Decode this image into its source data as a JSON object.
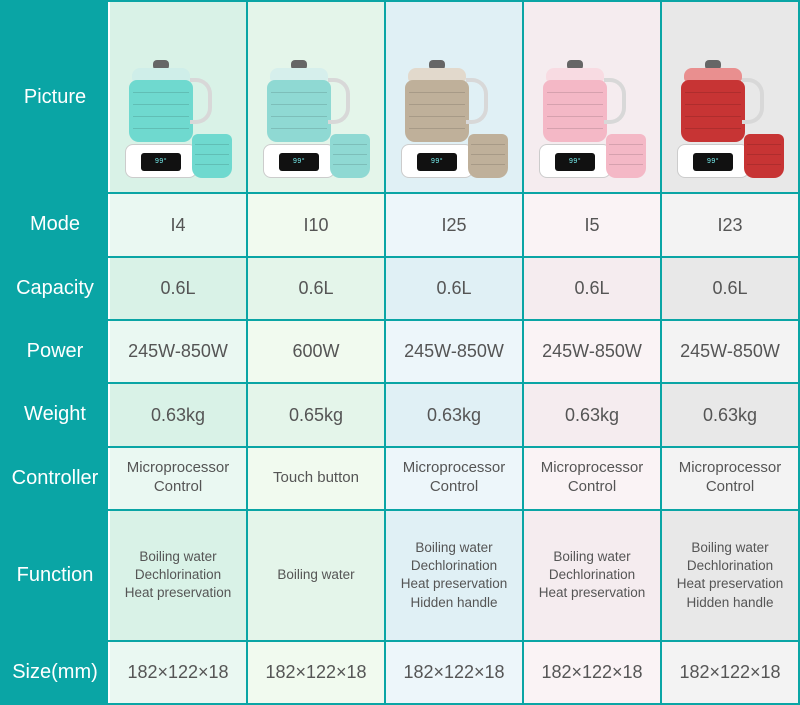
{
  "table": {
    "type": "table",
    "header_bg": "#0aa5a5",
    "header_text_color": "#ffffff",
    "border_color": "#0aa5a5",
    "cell_text_color": "#555555",
    "header_fontsize": 20,
    "cell_fontsize": 18,
    "small_fontsize": 15,
    "xs_fontsize": 13.5,
    "row_headers": [
      "Picture",
      "Mode",
      "Capacity",
      "Power",
      "Weight",
      "Controller",
      "Function",
      "Size(mm)"
    ],
    "columns": [
      {
        "bg_light": "#eaf8f2",
        "bg_dark": "#d9f2e7",
        "product_color": "#6fd9cf",
        "accent": "#cfeee9",
        "mode": "I4",
        "capacity": "0.6L",
        "power": "245W-850W",
        "weight": "0.63kg",
        "controller": "Microprocessor\nControl",
        "function": "Boiling water\nDechlorination\nHeat preservation",
        "size": "182×122×18"
      },
      {
        "bg_light": "#f1faef",
        "bg_dark": "#e4f5ea",
        "product_color": "#8fd9d3",
        "accent": "#d6efec",
        "mode": "I10",
        "capacity": "0.6L",
        "power": "600W",
        "weight": "0.65kg",
        "controller": "Touch button",
        "function": "Boiling water",
        "size": "182×122×18"
      },
      {
        "bg_light": "#edf6fa",
        "bg_dark": "#e0f0f5",
        "product_color": "#bfb09a",
        "accent": "#e2d9cc",
        "mode": "I25",
        "capacity": "0.6L",
        "power": "245W-850W",
        "weight": "0.63kg",
        "controller": "Microprocessor\nControl",
        "function": "Boiling water\nDechlorination\nHeat preservation\nHidden handle",
        "size": "182×122×18"
      },
      {
        "bg_light": "#faf3f5",
        "bg_dark": "#f5ecef",
        "product_color": "#f4b8c6",
        "accent": "#f8dbe2",
        "mode": "I5",
        "capacity": "0.6L",
        "power": "245W-850W",
        "weight": "0.63kg",
        "controller": "Microprocessor\nControl",
        "function": "Boiling water\nDechlorination\nHeat preservation",
        "size": "182×122×18"
      },
      {
        "bg_light": "#f3f3f3",
        "bg_dark": "#e8e8e8",
        "product_color": "#c73434",
        "accent": "#e98f8f",
        "mode": "I23",
        "capacity": "0.6L",
        "power": "245W-850W",
        "weight": "0.63kg",
        "controller": "Microprocessor\nControl",
        "function": "Boiling water\nDechlorination\nHeat preservation\nHidden handle",
        "size": "182×122×18"
      }
    ]
  }
}
